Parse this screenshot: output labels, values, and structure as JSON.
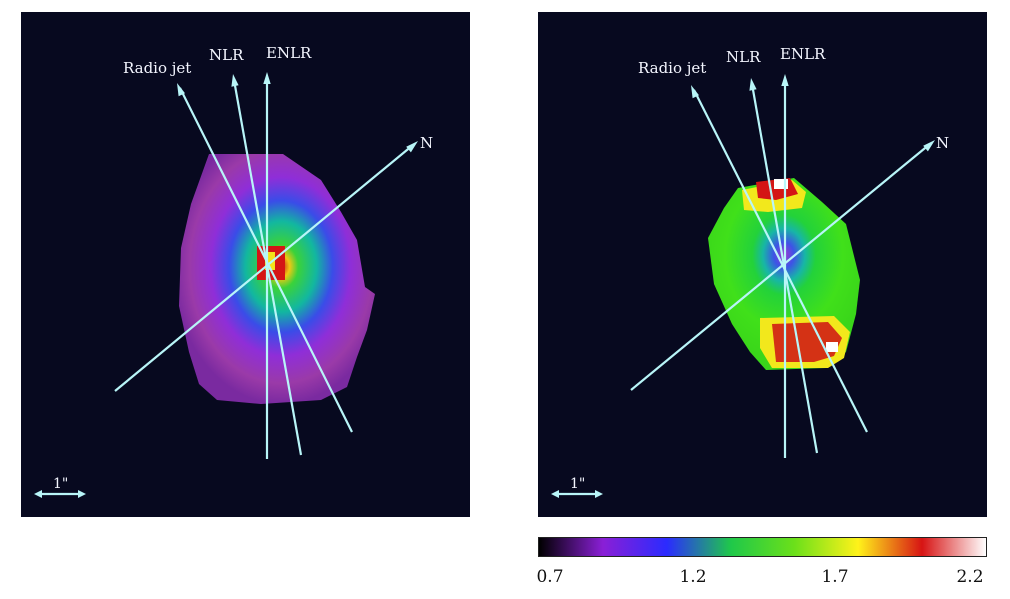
{
  "panels": [
    {
      "id": "left",
      "labels": {
        "radio_jet": "Radio jet",
        "nlr": "NLR",
        "enlr": "ENLR",
        "north": "N"
      },
      "scale_bar": "1\""
    },
    {
      "id": "right",
      "labels": {
        "radio_jet": "Radio jet",
        "nlr": "NLR",
        "enlr": "ENLR",
        "north": "N"
      },
      "scale_bar": "1\""
    }
  ],
  "colorbar": {
    "min": 0.7,
    "max": 2.2,
    "tick_labels": [
      "0.7",
      "1.2",
      "1.7",
      "2.2"
    ],
    "colors": [
      "#000000",
      "#8a1fd6",
      "#2b2bff",
      "#1fc84a",
      "#6be01a",
      "#fff21a",
      "#d71414",
      "#ffffff"
    ]
  },
  "colors": {
    "background": "#07091f",
    "arrow": "#b8f5f8",
    "text": "#f4f6ff"
  }
}
